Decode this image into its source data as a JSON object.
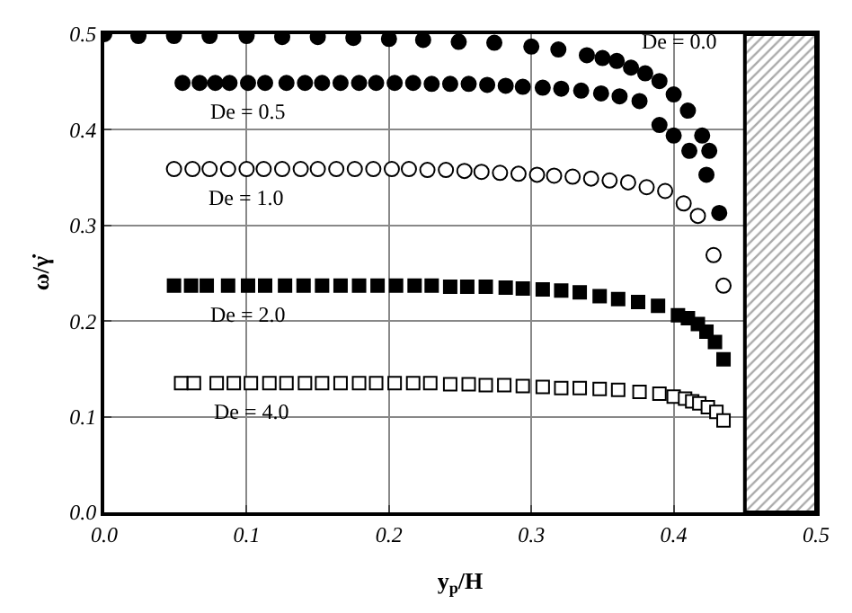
{
  "chart_data": {
    "type": "scatter",
    "xlabel": "y$_{p}$/H",
    "ylabel": "ω/γ̇",
    "xlim": [
      0,
      0.5
    ],
    "ylim": [
      0,
      0.5
    ],
    "xticks": [
      {
        "value": 0,
        "label": "0.0"
      },
      {
        "value": 0.1,
        "label": "0.1"
      },
      {
        "value": 0.2,
        "label": "0.2"
      },
      {
        "value": 0.3,
        "label": "0.3"
      },
      {
        "value": 0.4,
        "label": "0.4"
      },
      {
        "value": 0.5,
        "label": "0.5"
      }
    ],
    "yticks": [
      {
        "value": 0,
        "label": "0.0"
      },
      {
        "value": 0.1,
        "label": "0.1"
      },
      {
        "value": 0.2,
        "label": "0.2"
      },
      {
        "value": 0.3,
        "label": "0.3"
      },
      {
        "value": 0.4,
        "label": "0.4"
      },
      {
        "value": 0.5,
        "label": "0.5"
      }
    ],
    "grid": true,
    "legend": false,
    "bands": [
      {
        "axis": "x",
        "from": 0.45,
        "to": 0.5,
        "color": "#ffffff"
      }
    ],
    "series": [
      {
        "name": "De = 0.0",
        "color": "#000000",
        "marker": "circle",
        "x": [
          0,
          0.024,
          0.049,
          0.074,
          0.1,
          0.125,
          0.15,
          0.175,
          0.2,
          0.224,
          0.249,
          0.274,
          0.3,
          0.319,
          0.339,
          0.35,
          0.36,
          0.37,
          0.38,
          0.39,
          0.4,
          0.41,
          0.42,
          0.425,
          0.423,
          0.432
        ],
        "values": [
          0.5,
          0.498,
          0.498,
          0.498,
          0.498,
          0.497,
          0.497,
          0.496,
          0.495,
          0.494,
          0.492,
          0.491,
          0.487,
          0.484,
          0.478,
          0.475,
          0.472,
          0.465,
          0.459,
          0.451,
          0.437,
          0.42,
          0.394,
          0.378,
          0.353,
          0.313
        ]
      },
      {
        "name": "De = 0.5",
        "color": "#000000",
        "marker": "circle",
        "x": [
          0.055,
          0.067,
          0.078,
          0.088,
          0.101,
          0.113,
          0.128,
          0.141,
          0.153,
          0.166,
          0.179,
          0.191,
          0.204,
          0.217,
          0.23,
          0.243,
          0.256,
          0.269,
          0.282,
          0.294,
          0.308,
          0.321,
          0.335,
          0.349,
          0.362,
          0.376,
          0.39,
          0.4,
          0.411
        ],
        "values": [
          0.449,
          0.449,
          0.449,
          0.449,
          0.449,
          0.449,
          0.449,
          0.449,
          0.449,
          0.449,
          0.449,
          0.449,
          0.449,
          0.449,
          0.448,
          0.448,
          0.448,
          0.447,
          0.446,
          0.445,
          0.444,
          0.443,
          0.441,
          0.438,
          0.435,
          0.43,
          0.405,
          0.394,
          0.378
        ]
      },
      {
        "name": "De = 1.0",
        "color": "#ffffff",
        "marker": "circle",
        "x": [
          0.049,
          0.062,
          0.074,
          0.087,
          0.1,
          0.112,
          0.125,
          0.138,
          0.15,
          0.163,
          0.176,
          0.189,
          0.202,
          0.214,
          0.227,
          0.24,
          0.253,
          0.265,
          0.278,
          0.291,
          0.304,
          0.316,
          0.329,
          0.342,
          0.355,
          0.368,
          0.381,
          0.394,
          0.407,
          0.417,
          0.428,
          0.435
        ],
        "values": [
          0.359,
          0.359,
          0.359,
          0.359,
          0.359,
          0.359,
          0.359,
          0.359,
          0.359,
          0.359,
          0.359,
          0.359,
          0.359,
          0.359,
          0.358,
          0.358,
          0.357,
          0.356,
          0.355,
          0.354,
          0.353,
          0.352,
          0.351,
          0.349,
          0.347,
          0.345,
          0.34,
          0.336,
          0.323,
          0.31,
          0.269,
          0.237
        ]
      },
      {
        "name": "De = 2.0",
        "color": "#000000",
        "marker": "square",
        "x": [
          0.049,
          0.061,
          0.072,
          0.087,
          0.101,
          0.113,
          0.127,
          0.14,
          0.153,
          0.166,
          0.179,
          0.192,
          0.205,
          0.218,
          0.23,
          0.243,
          0.255,
          0.268,
          0.282,
          0.294,
          0.308,
          0.321,
          0.334,
          0.348,
          0.361,
          0.375,
          0.389,
          0.403,
          0.41,
          0.417,
          0.423,
          0.429,
          0.435
        ],
        "values": [
          0.237,
          0.237,
          0.237,
          0.237,
          0.237,
          0.237,
          0.237,
          0.237,
          0.237,
          0.237,
          0.237,
          0.237,
          0.237,
          0.237,
          0.237,
          0.236,
          0.236,
          0.236,
          0.235,
          0.234,
          0.233,
          0.232,
          0.23,
          0.226,
          0.223,
          0.22,
          0.216,
          0.206,
          0.203,
          0.197,
          0.189,
          0.178,
          0.16
        ]
      },
      {
        "name": "De = 4.0",
        "color": "#ffffff",
        "marker": "square",
        "x": [
          0.054,
          0.063,
          0.079,
          0.091,
          0.103,
          0.116,
          0.128,
          0.141,
          0.153,
          0.166,
          0.179,
          0.191,
          0.204,
          0.217,
          0.229,
          0.243,
          0.256,
          0.268,
          0.281,
          0.294,
          0.308,
          0.321,
          0.334,
          0.348,
          0.361,
          0.376,
          0.39,
          0.4,
          0.408,
          0.413,
          0.418,
          0.424,
          0.43,
          0.435
        ],
        "values": [
          0.135,
          0.135,
          0.135,
          0.135,
          0.135,
          0.135,
          0.135,
          0.135,
          0.135,
          0.135,
          0.135,
          0.135,
          0.135,
          0.135,
          0.135,
          0.134,
          0.134,
          0.133,
          0.133,
          0.132,
          0.131,
          0.13,
          0.13,
          0.129,
          0.128,
          0.126,
          0.124,
          0.121,
          0.119,
          0.116,
          0.114,
          0.11,
          0.105,
          0.096
        ]
      }
    ]
  }
}
